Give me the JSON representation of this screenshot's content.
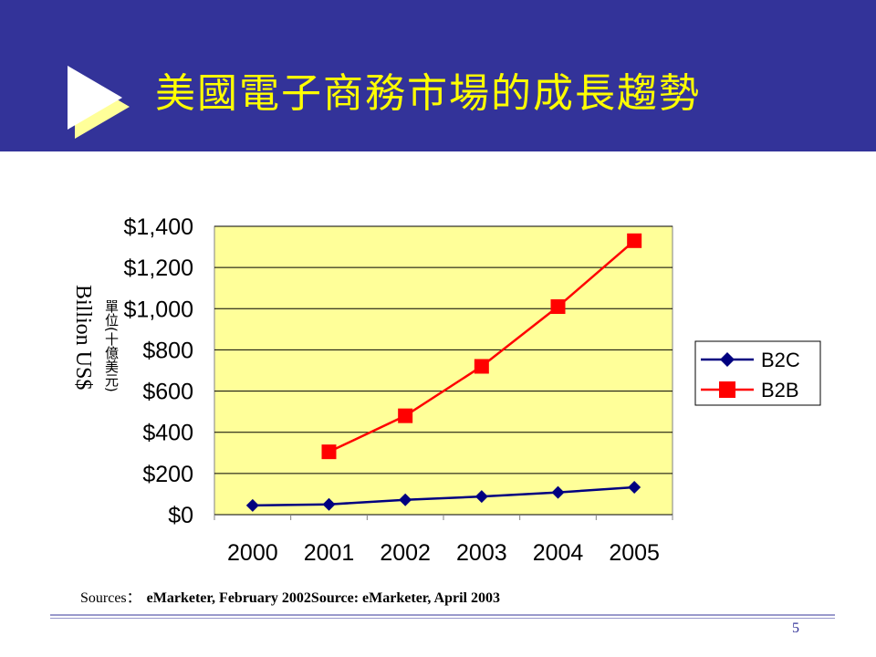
{
  "slide": {
    "title": "美國電子商務市場的成長趨勢",
    "page_number": "5",
    "sources_label": "Sources：",
    "sources_text": "eMarketer, February 2002Source: eMarketer, April 2003",
    "colors": {
      "header_bg": "#333399",
      "title": "#ffff00",
      "arrow": "#ffffff",
      "arrow_shadow": "#ffff99",
      "plot_bg": "#ffff99"
    }
  },
  "chart_data": {
    "type": "line",
    "title": "",
    "xlabel": "",
    "ylabel": "Billion US$",
    "ylabel_secondary": "單位(十億美元)",
    "x": [
      "2000",
      "2001",
      "2002",
      "2003",
      "2004",
      "2005"
    ],
    "ylim": [
      0,
      1400
    ],
    "yticks": [
      0,
      200,
      400,
      600,
      800,
      1000,
      1200,
      1400
    ],
    "ytick_labels": [
      "$0",
      "$200",
      "$400",
      "$600",
      "$800",
      "$1,000",
      "$1,200",
      "$1,400"
    ],
    "grid": true,
    "legend_position": "right",
    "series": [
      {
        "name": "B2C",
        "color": "#000080",
        "marker": "diamond",
        "values": [
          45,
          50,
          72,
          88,
          108,
          133
        ]
      },
      {
        "name": "B2B",
        "color": "#ff0000",
        "marker": "square",
        "values": [
          null,
          305,
          480,
          720,
          1010,
          1330
        ]
      }
    ]
  }
}
